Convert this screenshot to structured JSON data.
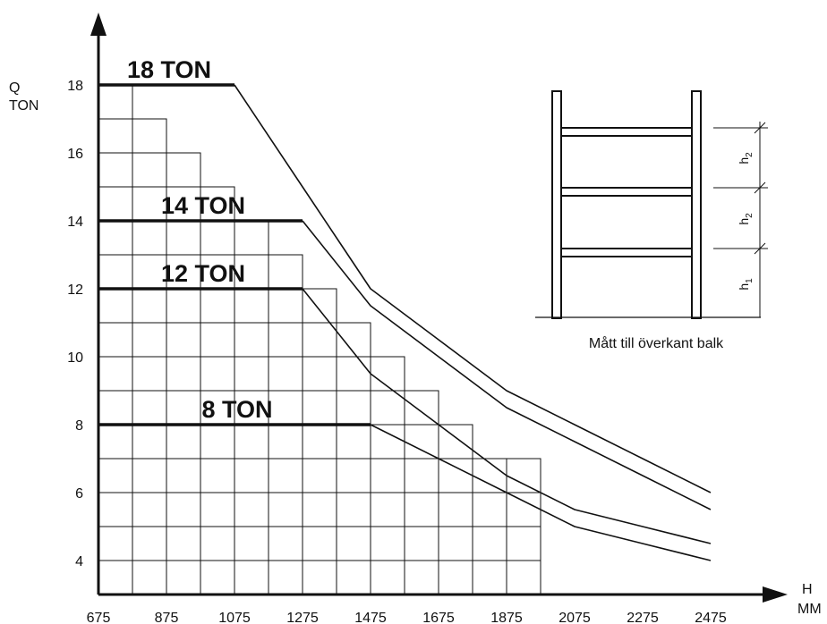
{
  "chart_data": {
    "type": "line",
    "xlabel": [
      "H",
      "MM"
    ],
    "ylabel": [
      "Q",
      "TON"
    ],
    "xlim": [
      675,
      2475
    ],
    "ylim": [
      3,
      19
    ],
    "x_ticks": [
      675,
      875,
      1075,
      1275,
      1475,
      1675,
      1875,
      2075,
      2275,
      2475
    ],
    "y_ticks": [
      4,
      6,
      8,
      10,
      12,
      14,
      16,
      18
    ],
    "grid": true,
    "series": [
      {
        "name": "18 TON",
        "points": [
          [
            675,
            18
          ],
          [
            1075,
            18
          ],
          [
            1275,
            15
          ],
          [
            1475,
            12
          ],
          [
            1675,
            10.5
          ],
          [
            1875,
            9
          ],
          [
            2075,
            8
          ],
          [
            2275,
            7
          ],
          [
            2475,
            6
          ]
        ]
      },
      {
        "name": "14 TON",
        "points": [
          [
            675,
            14
          ],
          [
            1275,
            14
          ],
          [
            1475,
            11.5
          ],
          [
            1675,
            10
          ],
          [
            1875,
            8.5
          ],
          [
            2075,
            7.5
          ],
          [
            2275,
            6.5
          ],
          [
            2475,
            5.5
          ]
        ]
      },
      {
        "name": "12 TON",
        "points": [
          [
            675,
            12
          ],
          [
            1275,
            12
          ],
          [
            1475,
            9.5
          ],
          [
            1675,
            8
          ],
          [
            1875,
            6.5
          ],
          [
            2075,
            5.5
          ],
          [
            2275,
            5
          ],
          [
            2475,
            4.5
          ]
        ]
      },
      {
        "name": "8 TON",
        "points": [
          [
            675,
            8
          ],
          [
            1475,
            8
          ],
          [
            1675,
            7
          ],
          [
            1875,
            6
          ],
          [
            2075,
            5
          ],
          [
            2275,
            4.5
          ],
          [
            2475,
            4
          ]
        ]
      }
    ],
    "staircase_top": [
      18,
      17,
      16,
      15,
      14,
      13,
      12,
      11,
      10,
      9,
      8,
      7,
      7
    ]
  },
  "diagram": {
    "caption": "Mått till överkant balk",
    "dimension_labels": [
      {
        "main": "h",
        "sub": "2"
      },
      {
        "main": "h",
        "sub": "2"
      },
      {
        "main": "h",
        "sub": "1"
      }
    ]
  }
}
